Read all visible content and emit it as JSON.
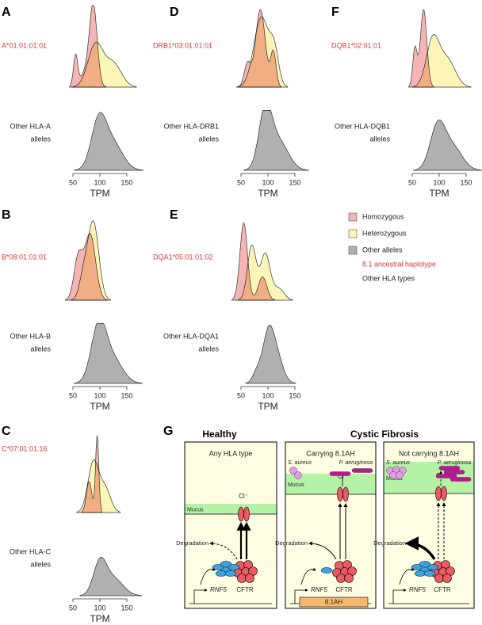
{
  "panels": [
    {
      "letter": "A",
      "allele": "A*01:01:01:01",
      "other": [
        "Other HLA-A",
        "alleles"
      ],
      "ticks": [
        "50",
        "100",
        "150"
      ],
      "axis_label": "TPM"
    },
    {
      "letter": "D",
      "allele": "DRB1*03:01:01:01",
      "other": [
        "Other HLA-DRB1",
        "alleles"
      ],
      "ticks": [
        "50",
        "100",
        "150"
      ],
      "axis_label": "TPM"
    },
    {
      "letter": "F",
      "allele": "DQB1*02:01:01",
      "other": [
        "Other HLA-DQB1",
        "alleles"
      ],
      "ticks": [
        "50",
        "100",
        "150"
      ],
      "axis_label": "TPM"
    },
    {
      "letter": "B",
      "allele": "B*08:01:01:01",
      "other": [
        "Other HLA-B",
        "alleles"
      ],
      "ticks": [
        "50",
        "100",
        "150"
      ],
      "axis_label": "TPM"
    },
    {
      "letter": "E",
      "allele": "DQA1*05:01:01:02",
      "other": [
        "Other HLA-DQA1",
        "alleles"
      ],
      "ticks": [
        "50",
        "100",
        "150"
      ],
      "axis_label": "TPM"
    },
    {
      "letter": "C",
      "allele": "C*07:01:01:16",
      "other": [
        "Other HLA-C",
        "alleles"
      ],
      "ticks": [
        "50",
        "100",
        "150"
      ],
      "axis_label": "TPM"
    }
  ],
  "legend": [
    "Homozygous",
    "Heterozygous",
    "Other alleles",
    "8.1 ancestral haplotype",
    "Other HLA types"
  ],
  "panel_g": {
    "letter": "G",
    "titles": [
      "Healthy",
      "Cystic Fibrosis"
    ],
    "boxes": [
      {
        "subtitle": "Any HLA type",
        "mucus": "Mucus",
        "cl": "Cl⁻",
        "degradation": "Degradation",
        "rnf5": "RNF5",
        "cftr": "CFTR"
      },
      {
        "subtitle": "Carrying 8.1AH",
        "mucus": "Mucus",
        "cl": "Cl⁻",
        "degradation": "Degradation",
        "rnf5": "RNF5",
        "cftr": "CFTR",
        "bacteria": [
          "S. aureus",
          "P. aeruginosa"
        ],
        "haplotype": "8.1AH"
      },
      {
        "subtitle": "Not carrying 8.1AH",
        "mucus": "Mucus",
        "cl": "Cl⁻",
        "degradation": "Degradation",
        "rnf5": "RNF5",
        "cftr": "CFTR",
        "bacteria": [
          "S. aureus",
          "P. aeruginosa"
        ]
      }
    ]
  }
}
